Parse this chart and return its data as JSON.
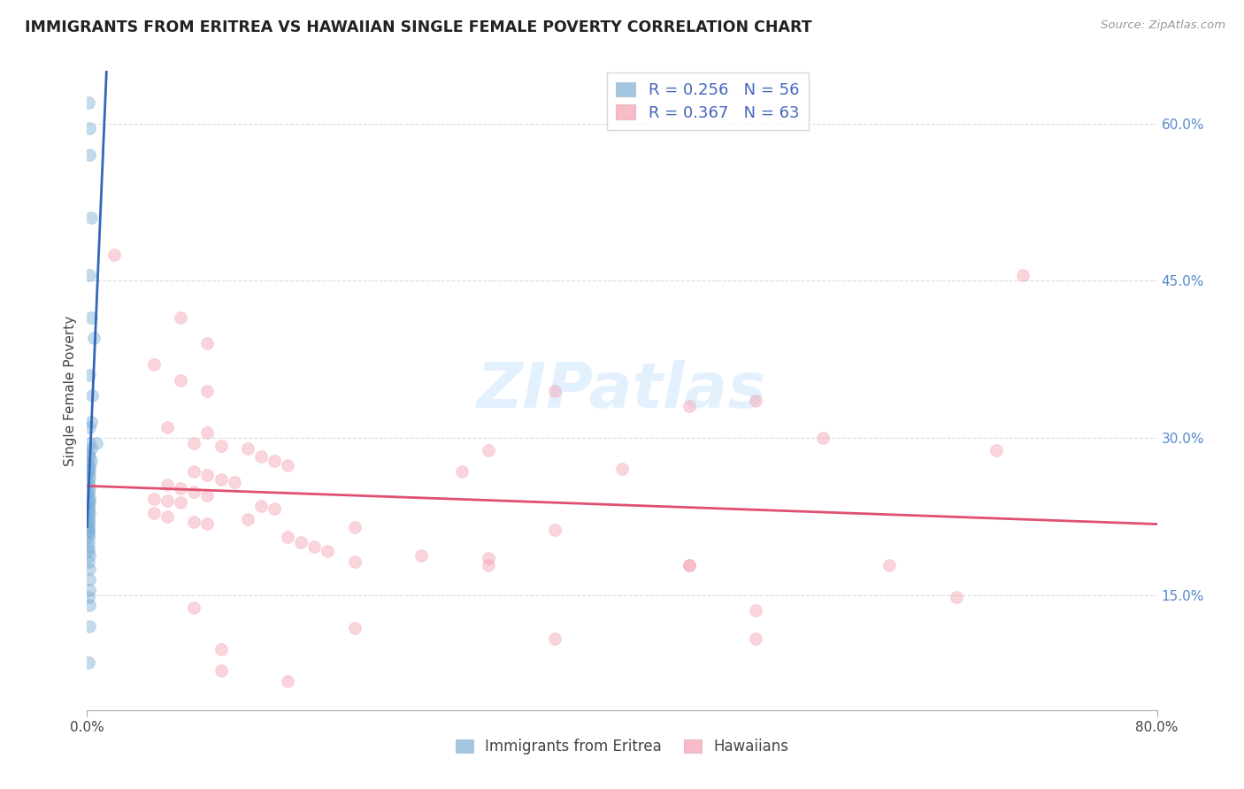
{
  "title": "IMMIGRANTS FROM ERITREA VS HAWAIIAN SINGLE FEMALE POVERTY CORRELATION CHART",
  "source": "Source: ZipAtlas.com",
  "ylabel": "Single Female Poverty",
  "ytick_labels": [
    "15.0%",
    "30.0%",
    "45.0%",
    "60.0%"
  ],
  "ytick_values": [
    0.15,
    0.3,
    0.45,
    0.6
  ],
  "xmin": 0.0,
  "xmax": 0.8,
  "ymin": 0.04,
  "ymax": 0.65,
  "R_blue": 0.256,
  "N_blue": 56,
  "R_pink": 0.367,
  "N_pink": 63,
  "scatter_blue": [
    [
      0.001,
      0.62
    ],
    [
      0.002,
      0.595
    ],
    [
      0.002,
      0.57
    ],
    [
      0.003,
      0.51
    ],
    [
      0.002,
      0.455
    ],
    [
      0.003,
      0.415
    ],
    [
      0.005,
      0.395
    ],
    [
      0.002,
      0.36
    ],
    [
      0.004,
      0.34
    ],
    [
      0.003,
      0.315
    ],
    [
      0.002,
      0.31
    ],
    [
      0.002,
      0.295
    ],
    [
      0.003,
      0.29
    ],
    [
      0.001,
      0.285
    ],
    [
      0.002,
      0.282
    ],
    [
      0.003,
      0.278
    ],
    [
      0.001,
      0.275
    ],
    [
      0.002,
      0.272
    ],
    [
      0.001,
      0.27
    ],
    [
      0.002,
      0.268
    ],
    [
      0.001,
      0.265
    ],
    [
      0.002,
      0.262
    ],
    [
      0.001,
      0.258
    ],
    [
      0.001,
      0.255
    ],
    [
      0.002,
      0.252
    ],
    [
      0.001,
      0.248
    ],
    [
      0.001,
      0.245
    ],
    [
      0.002,
      0.242
    ],
    [
      0.001,
      0.24
    ],
    [
      0.002,
      0.238
    ],
    [
      0.001,
      0.235
    ],
    [
      0.001,
      0.232
    ],
    [
      0.001,
      0.23
    ],
    [
      0.002,
      0.228
    ],
    [
      0.001,
      0.225
    ],
    [
      0.001,
      0.222
    ],
    [
      0.001,
      0.22
    ],
    [
      0.001,
      0.218
    ],
    [
      0.001,
      0.215
    ],
    [
      0.001,
      0.212
    ],
    [
      0.001,
      0.21
    ],
    [
      0.001,
      0.208
    ],
    [
      0.001,
      0.205
    ],
    [
      0.001,
      0.2
    ],
    [
      0.001,
      0.195
    ],
    [
      0.001,
      0.192
    ],
    [
      0.002,
      0.188
    ],
    [
      0.001,
      0.182
    ],
    [
      0.002,
      0.175
    ],
    [
      0.002,
      0.165
    ],
    [
      0.002,
      0.155
    ],
    [
      0.001,
      0.148
    ],
    [
      0.002,
      0.14
    ],
    [
      0.002,
      0.12
    ],
    [
      0.001,
      0.085
    ],
    [
      0.007,
      0.295
    ]
  ],
  "scatter_pink": [
    [
      0.02,
      0.475
    ],
    [
      0.07,
      0.415
    ],
    [
      0.09,
      0.39
    ],
    [
      0.05,
      0.37
    ],
    [
      0.07,
      0.355
    ],
    [
      0.09,
      0.345
    ],
    [
      0.35,
      0.345
    ],
    [
      0.45,
      0.33
    ],
    [
      0.5,
      0.335
    ],
    [
      0.06,
      0.31
    ],
    [
      0.09,
      0.305
    ],
    [
      0.08,
      0.295
    ],
    [
      0.1,
      0.292
    ],
    [
      0.12,
      0.29
    ],
    [
      0.3,
      0.288
    ],
    [
      0.55,
      0.3
    ],
    [
      0.7,
      0.455
    ],
    [
      0.68,
      0.288
    ],
    [
      0.4,
      0.27
    ],
    [
      0.13,
      0.282
    ],
    [
      0.14,
      0.278
    ],
    [
      0.15,
      0.274
    ],
    [
      0.08,
      0.268
    ],
    [
      0.09,
      0.264
    ],
    [
      0.1,
      0.26
    ],
    [
      0.11,
      0.258
    ],
    [
      0.06,
      0.255
    ],
    [
      0.07,
      0.252
    ],
    [
      0.08,
      0.248
    ],
    [
      0.09,
      0.245
    ],
    [
      0.05,
      0.242
    ],
    [
      0.06,
      0.24
    ],
    [
      0.07,
      0.238
    ],
    [
      0.13,
      0.235
    ],
    [
      0.14,
      0.232
    ],
    [
      0.05,
      0.228
    ],
    [
      0.06,
      0.225
    ],
    [
      0.12,
      0.222
    ],
    [
      0.08,
      0.22
    ],
    [
      0.09,
      0.218
    ],
    [
      0.2,
      0.215
    ],
    [
      0.35,
      0.212
    ],
    [
      0.15,
      0.205
    ],
    [
      0.16,
      0.2
    ],
    [
      0.17,
      0.196
    ],
    [
      0.18,
      0.192
    ],
    [
      0.25,
      0.188
    ],
    [
      0.3,
      0.185
    ],
    [
      0.2,
      0.182
    ],
    [
      0.45,
      0.178
    ],
    [
      0.6,
      0.178
    ],
    [
      0.5,
      0.135
    ],
    [
      0.65,
      0.148
    ],
    [
      0.2,
      0.118
    ],
    [
      0.35,
      0.108
    ],
    [
      0.08,
      0.138
    ],
    [
      0.1,
      0.098
    ],
    [
      0.1,
      0.078
    ],
    [
      0.15,
      0.068
    ],
    [
      0.45,
      0.178
    ],
    [
      0.28,
      0.268
    ],
    [
      0.5,
      0.108
    ],
    [
      0.3,
      0.178
    ]
  ],
  "blue_color": "#7BAFD4",
  "pink_color": "#F4A0B0",
  "blue_line_color": "#3366BB",
  "pink_line_color": "#E05070",
  "blue_dashed_color": "#AACCEE",
  "background_color": "#FFFFFF",
  "grid_color": "#DDDDDD",
  "watermark_color": "#DDEEFF"
}
